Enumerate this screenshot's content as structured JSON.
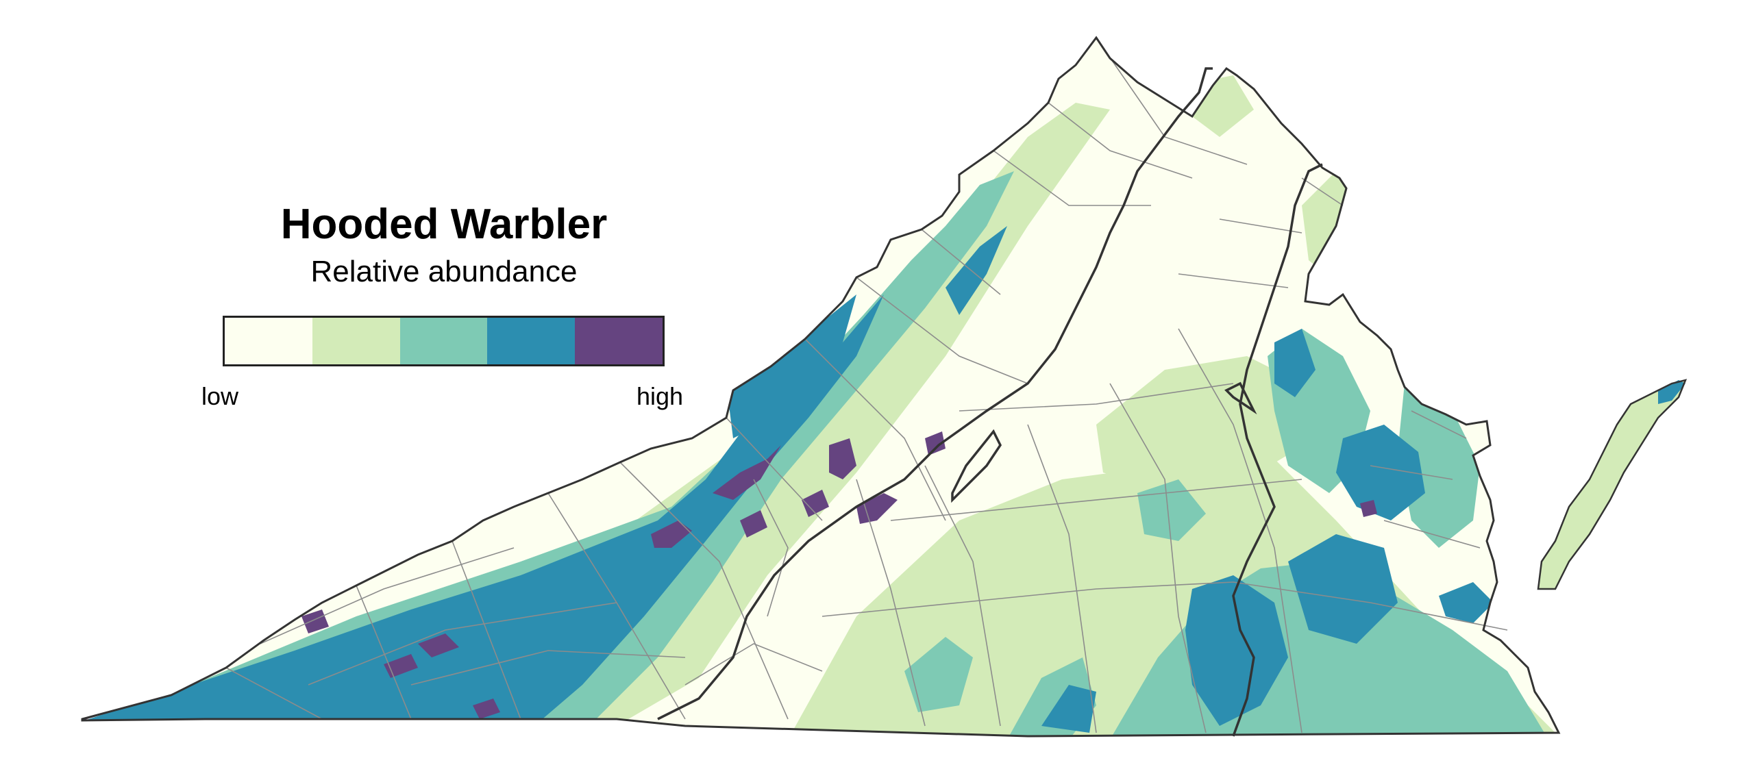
{
  "map": {
    "title": "Hooded Warbler",
    "subtitle": "Relative abundance",
    "legend": {
      "low_label": "low",
      "high_label": "high",
      "classes": [
        {
          "level": 1,
          "color": "#fdfff0"
        },
        {
          "level": 2,
          "color": "#d3ebb8"
        },
        {
          "level": 3,
          "color": "#7ecab4"
        },
        {
          "level": 4,
          "color": "#2c8eb0"
        },
        {
          "level": 5,
          "color": "#654480"
        }
      ]
    },
    "colors": {
      "outline": "#333333",
      "county_lines": "#8c8c8c"
    }
  }
}
